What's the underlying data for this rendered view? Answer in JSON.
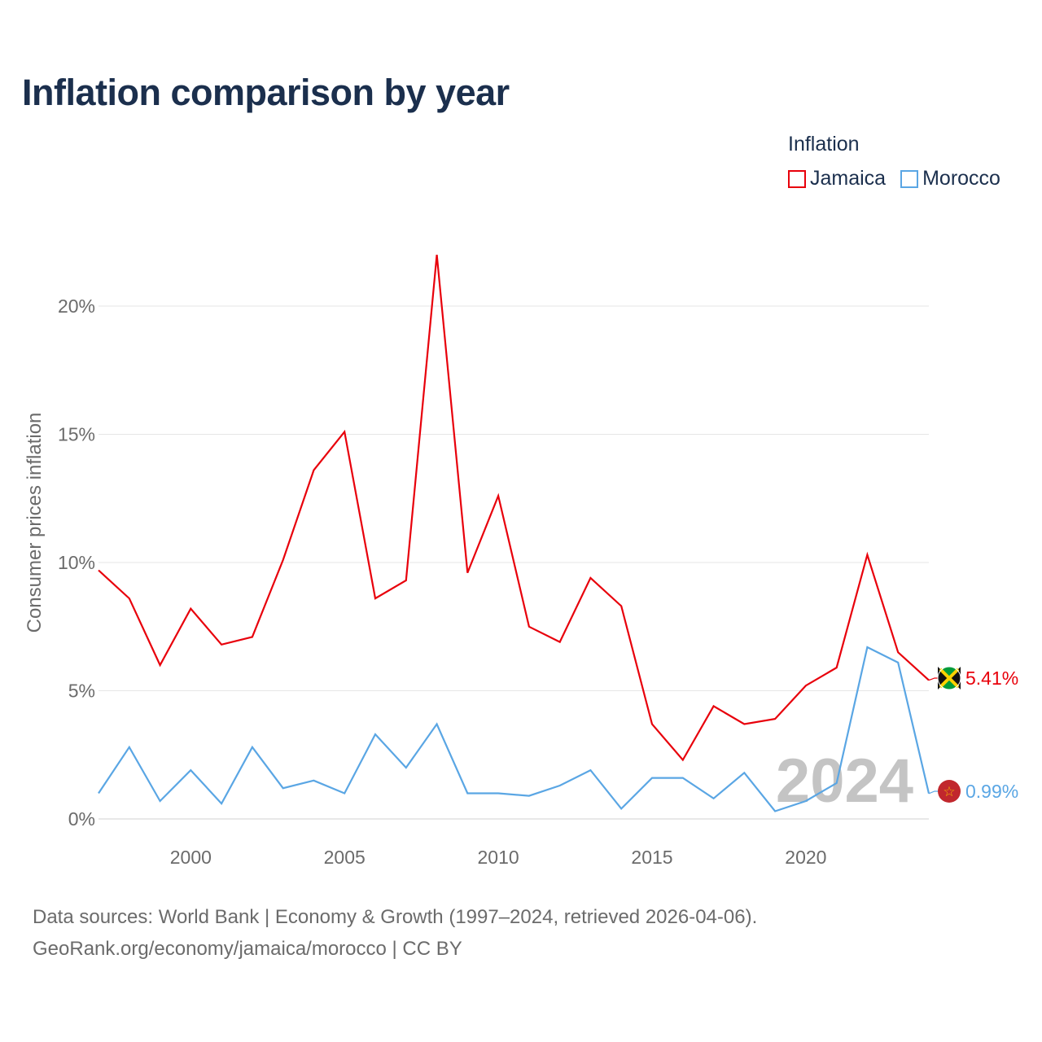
{
  "title": "Inflation comparison by year",
  "legend": {
    "title": "Inflation",
    "items": [
      {
        "label": "Jamaica",
        "color": "#e8000b"
      },
      {
        "label": "Morocco",
        "color": "#5aa6e4"
      }
    ]
  },
  "year_watermark": "2024",
  "footer": {
    "line1": "Data sources: World Bank | Economy & Growth (1997–2024, retrieved 2026-04-06).",
    "line2": "GeoRank.org/economy/jamaica/morocco | CC BY"
  },
  "chart_data": {
    "type": "line",
    "title": "Inflation comparison by year",
    "xlabel": "",
    "ylabel": "Consumer prices inflation",
    "x": [
      1997,
      1998,
      1999,
      2000,
      2001,
      2002,
      2003,
      2004,
      2005,
      2006,
      2007,
      2008,
      2009,
      2010,
      2011,
      2012,
      2013,
      2014,
      2015,
      2016,
      2017,
      2018,
      2019,
      2020,
      2021,
      2022,
      2023,
      2024
    ],
    "xlim": [
      1997,
      2024
    ],
    "ylim": [
      0,
      22
    ],
    "x_ticks": [
      2000,
      2005,
      2010,
      2015,
      2020
    ],
    "y_ticks": [
      0,
      5,
      10,
      15,
      20
    ],
    "y_tick_labels": [
      "0%",
      "5%",
      "10%",
      "15%",
      "20%"
    ],
    "grid": true,
    "legend_position": "top-right",
    "series": [
      {
        "name": "Jamaica",
        "color": "#e8000b",
        "end_label": "5.41%",
        "flag_icon": "jamaica-flag-icon",
        "values": [
          9.7,
          8.6,
          6.0,
          8.2,
          6.8,
          7.1,
          10.1,
          13.6,
          15.1,
          8.6,
          9.3,
          22.0,
          9.6,
          12.6,
          7.5,
          6.9,
          9.4,
          8.3,
          3.7,
          2.3,
          4.4,
          3.7,
          3.9,
          5.2,
          5.9,
          10.3,
          6.5,
          5.41
        ]
      },
      {
        "name": "Morocco",
        "color": "#5aa6e4",
        "end_label": "0.99%",
        "flag_icon": "morocco-flag-icon",
        "values": [
          1.0,
          2.8,
          0.7,
          1.9,
          0.6,
          2.8,
          1.2,
          1.5,
          1.0,
          3.3,
          2.0,
          3.7,
          1.0,
          1.0,
          0.9,
          1.3,
          1.9,
          0.4,
          1.6,
          1.6,
          0.8,
          1.8,
          0.3,
          0.7,
          1.4,
          6.7,
          6.1,
          0.99
        ]
      }
    ]
  }
}
